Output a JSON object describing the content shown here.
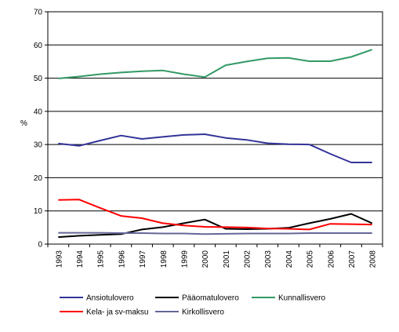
{
  "chart_data": {
    "type": "line",
    "title": "",
    "xlabel": "",
    "ylabel": "%",
    "ylim": [
      0,
      70
    ],
    "yticks": [
      0,
      10,
      20,
      30,
      40,
      50,
      60,
      70
    ],
    "grid": "horizontal",
    "legend_position": "bottom",
    "categories": [
      "1993",
      "1994",
      "1995",
      "1996",
      "1997",
      "1998",
      "1999",
      "2000",
      "2001",
      "2002",
      "2003",
      "2004",
      "2005",
      "2006",
      "2007",
      "2008"
    ],
    "series": [
      {
        "name": "Ansiotulovero",
        "color": "#333399",
        "values": [
          30.3,
          29.6,
          31.2,
          32.7,
          31.7,
          32.3,
          32.9,
          33.1,
          32.0,
          31.4,
          30.4,
          30.1,
          30.0,
          27.2,
          24.6,
          24.6
        ]
      },
      {
        "name": "Pääomatulovero",
        "color": "#000000",
        "values": [
          2.1,
          2.5,
          2.8,
          3.0,
          4.4,
          5.1,
          6.3,
          7.4,
          4.6,
          4.5,
          4.6,
          4.9,
          6.3,
          7.6,
          9.1,
          6.3
        ]
      },
      {
        "name": "Kunnallisvero",
        "color": "#339966",
        "values": [
          49.9,
          50.5,
          51.2,
          51.7,
          52.1,
          52.3,
          51.2,
          50.3,
          53.9,
          55.0,
          56.0,
          56.1,
          55.1,
          55.1,
          56.4,
          58.6
        ]
      },
      {
        "name": "Kela- ja sv-maksu",
        "color": "#ff0000",
        "values": [
          13.3,
          13.4,
          10.9,
          8.5,
          7.8,
          6.3,
          5.6,
          5.2,
          5.1,
          5.0,
          4.7,
          4.6,
          4.4,
          6.1,
          6.0,
          5.9
        ]
      },
      {
        "name": "Kirkollisvero",
        "color": "#666699",
        "values": [
          3.4,
          3.4,
          3.4,
          3.3,
          3.3,
          3.2,
          3.2,
          3.0,
          3.1,
          3.2,
          3.2,
          3.2,
          3.3,
          3.3,
          3.3,
          3.3
        ]
      }
    ]
  }
}
